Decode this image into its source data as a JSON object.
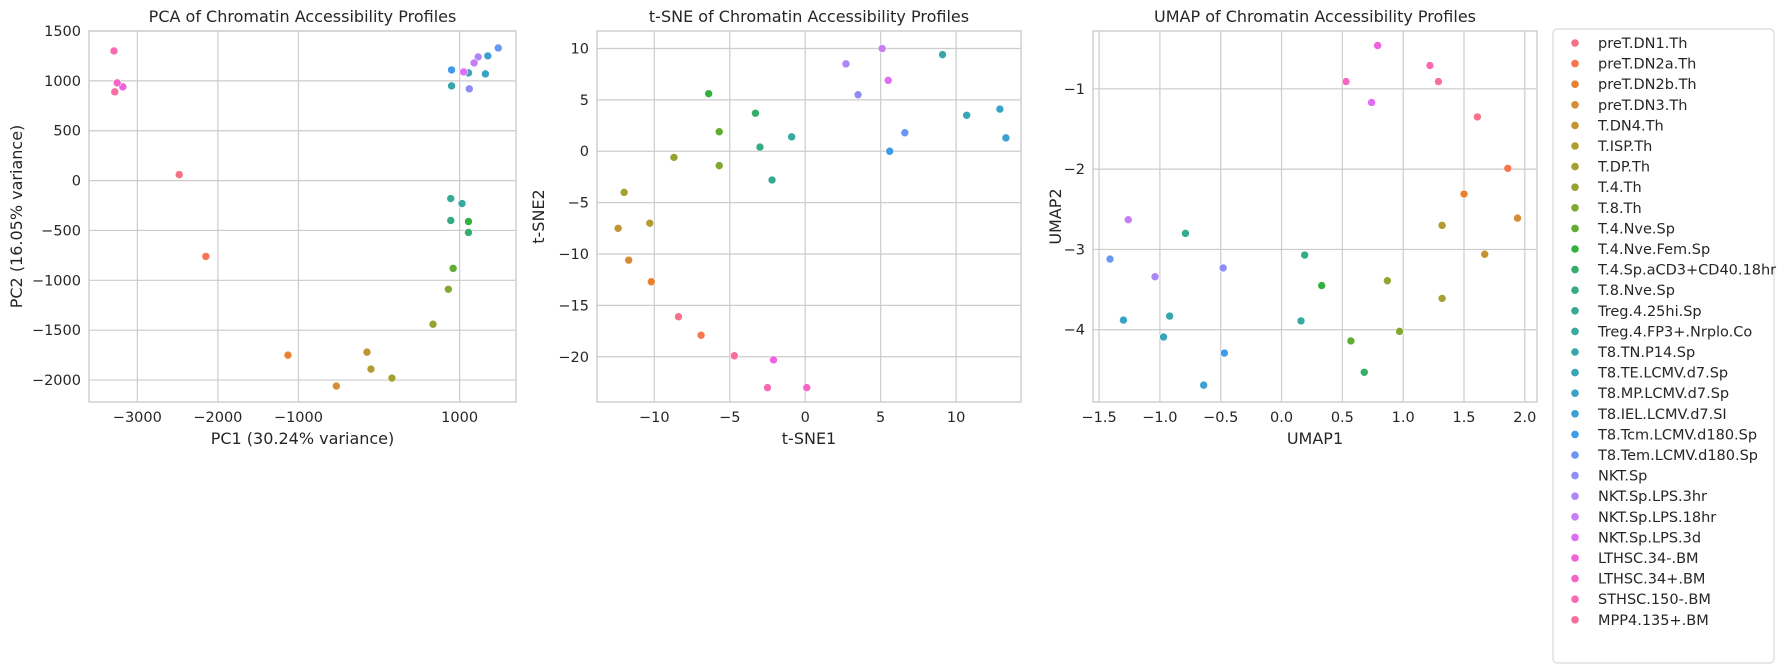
{
  "classes": [
    {
      "name": "preT.DN1.Th",
      "color": "#f77189"
    },
    {
      "name": "preT.DN2a.Th",
      "color": "#f7754f"
    },
    {
      "name": "preT.DN2b.Th",
      "color": "#e98132"
    },
    {
      "name": "preT.DN3.Th",
      "color": "#d58c32"
    },
    {
      "name": "T.DN4.Th",
      "color": "#c39532"
    },
    {
      "name": "T.ISP.Th",
      "color": "#b29b31"
    },
    {
      "name": "T.DP.Th",
      "color": "#a4a031"
    },
    {
      "name": "T.4.Th",
      "color": "#96a331"
    },
    {
      "name": "T.8.Th",
      "color": "#83a831"
    },
    {
      "name": "T.4.Nve.Sp",
      "color": "#5fae31"
    },
    {
      "name": "T.4.Nve.Fem.Sp",
      "color": "#32b13f"
    },
    {
      "name": "T.4.Sp.aCD3+CD40.18hr",
      "color": "#34ae6a"
    },
    {
      "name": "T.8.Nve.Sp",
      "color": "#35ac81"
    },
    {
      "name": "Treg.4.25hi.Sp",
      "color": "#36aa93"
    },
    {
      "name": "Treg.4.FP3+.Nrplo.Co",
      "color": "#36a9a0"
    },
    {
      "name": "T8.TN.P14.Sp",
      "color": "#37a7ac"
    },
    {
      "name": "T8.TE.LCMV.d7.Sp",
      "color": "#38a5b8"
    },
    {
      "name": "T8.MP.LCMV.d7.Sp",
      "color": "#39a3c5"
    },
    {
      "name": "T8.IEL.LCMV.d7.SI",
      "color": "#3ba0d4"
    },
    {
      "name": "T8.Tcm.LCMV.d180.Sp",
      "color": "#3e9bea"
    },
    {
      "name": "T8.Tem.LCMV.d180.Sp",
      "color": "#6a96f4"
    },
    {
      "name": "NKT.Sp",
      "color": "#8e8ef4"
    },
    {
      "name": "NKT.Sp.LPS.3hr",
      "color": "#ab86f4"
    },
    {
      "name": "NKT.Sp.LPS.18hr",
      "color": "#c77ef4"
    },
    {
      "name": "NKT.Sp.LPS.3d",
      "color": "#e06ef4"
    },
    {
      "name": "LTHSC.34-.BM",
      "color": "#f062dc"
    },
    {
      "name": "LTHSC.34+.BM",
      "color": "#f566c6"
    },
    {
      "name": "STHSC.150-.BM",
      "color": "#f66bb2"
    },
    {
      "name": "MPP4.135+.BM",
      "color": "#f76e9f"
    }
  ],
  "chart_data": [
    {
      "type": "scatter",
      "title": "PCA of Chromatin Accessibility Profiles",
      "xlabel": "PC1 (30.24% variance)",
      "ylabel": "PC2 (16.05% variance)",
      "xlim": [
        -3600,
        1700
      ],
      "ylim": [
        -2220,
        1500
      ],
      "xticks": [
        -3000,
        -2000,
        -1000,
        1000
      ],
      "xticklabels": [
        "−3000",
        "−2000",
        "−1000",
        "1000"
      ],
      "yticks": [
        1500,
        1000,
        500,
        0,
        -500,
        -1000,
        -1500,
        -2000
      ],
      "yticklabels": [
        "1500",
        "1000",
        "500",
        "0",
        "−500",
        "−1000",
        "−1500",
        "−2000"
      ],
      "grid": true,
      "points": [
        {
          "x": -2480,
          "y": 60,
          "c": 0
        },
        {
          "x": -2150,
          "y": -760,
          "c": 1
        },
        {
          "x": -1130,
          "y": -1750,
          "c": 2
        },
        {
          "x": -530,
          "y": -2060,
          "c": 3
        },
        {
          "x": -150,
          "y": -1720,
          "c": 4
        },
        {
          "x": -100,
          "y": -1890,
          "c": 5
        },
        {
          "x": 160,
          "y": -1980,
          "c": 6
        },
        {
          "x": 670,
          "y": -1440,
          "c": 7
        },
        {
          "x": 860,
          "y": -1090,
          "c": 8
        },
        {
          "x": 920,
          "y": -880,
          "c": 9
        },
        {
          "x": 1110,
          "y": -410,
          "c": 10
        },
        {
          "x": 1110,
          "y": -520,
          "c": 11
        },
        {
          "x": 890,
          "y": -400,
          "c": 12
        },
        {
          "x": 890,
          "y": -180,
          "c": 13
        },
        {
          "x": 1030,
          "y": -230,
          "c": 14
        },
        {
          "x": 900,
          "y": 950,
          "c": 15
        },
        {
          "x": 1110,
          "y": 1080,
          "c": 16
        },
        {
          "x": 1320,
          "y": 1070,
          "c": 17
        },
        {
          "x": 1350,
          "y": 1250,
          "c": 18
        },
        {
          "x": 900,
          "y": 1110,
          "c": 19
        },
        {
          "x": 1480,
          "y": 1330,
          "c": 20
        },
        {
          "x": 1120,
          "y": 920,
          "c": 21
        },
        {
          "x": 1230,
          "y": 1240,
          "c": 22
        },
        {
          "x": 1180,
          "y": 1180,
          "c": 23
        },
        {
          "x": 1050,
          "y": 1090,
          "c": 24
        },
        {
          "x": -3180,
          "y": 940,
          "c": 25
        },
        {
          "x": -3250,
          "y": 980,
          "c": 26
        },
        {
          "x": -3290,
          "y": 1300,
          "c": 27
        },
        {
          "x": -3280,
          "y": 890,
          "c": 28
        }
      ]
    },
    {
      "type": "scatter",
      "title": "t-SNE of Chromatin Accessibility Profiles",
      "xlabel": "t-SNE1",
      "ylabel": "t-SNE2",
      "xlim": [
        -13.8,
        14.3
      ],
      "ylim": [
        -24.4,
        11.7
      ],
      "xticks": [
        -10,
        -5,
        0,
        5,
        10
      ],
      "xticklabels": [
        "−10",
        "−5",
        "0",
        "5",
        "10"
      ],
      "yticks": [
        10,
        5,
        0,
        -5,
        -10,
        -15,
        -20
      ],
      "yticklabels": [
        "10",
        "5",
        "0",
        "−5",
        "−10",
        "−15",
        "−20"
      ],
      "grid": true,
      "points": [
        {
          "x": -8.4,
          "y": -16.1,
          "c": 0
        },
        {
          "x": -6.9,
          "y": -17.9,
          "c": 1
        },
        {
          "x": -10.2,
          "y": -12.7,
          "c": 2
        },
        {
          "x": -11.7,
          "y": -10.6,
          "c": 3
        },
        {
          "x": -12.4,
          "y": -7.5,
          "c": 4
        },
        {
          "x": -10.3,
          "y": -7.0,
          "c": 5
        },
        {
          "x": -12.0,
          "y": -4.0,
          "c": 6
        },
        {
          "x": -8.7,
          "y": -0.6,
          "c": 7
        },
        {
          "x": -5.7,
          "y": -1.4,
          "c": 8
        },
        {
          "x": -5.7,
          "y": 1.9,
          "c": 9
        },
        {
          "x": -6.4,
          "y": 5.6,
          "c": 10
        },
        {
          "x": -3.3,
          "y": 3.7,
          "c": 11
        },
        {
          "x": -3.0,
          "y": 0.4,
          "c": 12
        },
        {
          "x": -2.2,
          "y": -2.8,
          "c": 13
        },
        {
          "x": -0.9,
          "y": 1.4,
          "c": 14
        },
        {
          "x": 9.1,
          "y": 9.4,
          "c": 15
        },
        {
          "x": 10.7,
          "y": 3.5,
          "c": 16
        },
        {
          "x": 12.9,
          "y": 4.1,
          "c": 17
        },
        {
          "x": 13.3,
          "y": 1.3,
          "c": 18
        },
        {
          "x": 5.6,
          "y": 0.0,
          "c": 19
        },
        {
          "x": 6.6,
          "y": 1.8,
          "c": 20
        },
        {
          "x": 3.5,
          "y": 5.5,
          "c": 21
        },
        {
          "x": 2.7,
          "y": 8.5,
          "c": 22
        },
        {
          "x": 5.1,
          "y": 10.0,
          "c": 23
        },
        {
          "x": 5.5,
          "y": 6.9,
          "c": 24
        },
        {
          "x": -2.1,
          "y": -20.3,
          "c": 25
        },
        {
          "x": 0.1,
          "y": -23.0,
          "c": 26
        },
        {
          "x": -2.5,
          "y": -23.0,
          "c": 27
        },
        {
          "x": -4.7,
          "y": -19.9,
          "c": 28
        }
      ]
    },
    {
      "type": "scatter",
      "title": "UMAP of Chromatin Accessibility Profiles",
      "xlabel": "UMAP1",
      "ylabel": "UMAP2",
      "xlim": [
        -1.55,
        2.1
      ],
      "ylim": [
        -4.9,
        -0.28
      ],
      "xticks": [
        -1.5,
        -1.0,
        -0.5,
        0.0,
        0.5,
        1.0,
        1.5,
        2.0
      ],
      "xticklabels": [
        "−1.5",
        "−1.0",
        "−0.5",
        "0.0",
        "0.5",
        "1.0",
        "1.5",
        "2.0"
      ],
      "yticks": [
        -1,
        -2,
        -3,
        -4
      ],
      "yticklabels": [
        "−1",
        "−2",
        "−3",
        "−4"
      ],
      "grid": true,
      "points": [
        {
          "x": 1.61,
          "y": -1.35,
          "c": 0
        },
        {
          "x": 1.86,
          "y": -1.99,
          "c": 1
        },
        {
          "x": 1.5,
          "y": -2.31,
          "c": 2
        },
        {
          "x": 1.94,
          "y": -2.61,
          "c": 3
        },
        {
          "x": 1.67,
          "y": -3.06,
          "c": 4
        },
        {
          "x": 1.32,
          "y": -2.7,
          "c": 5
        },
        {
          "x": 1.32,
          "y": -3.61,
          "c": 6
        },
        {
          "x": 0.87,
          "y": -3.39,
          "c": 7
        },
        {
          "x": 0.97,
          "y": -4.02,
          "c": 8
        },
        {
          "x": 0.57,
          "y": -4.14,
          "c": 9
        },
        {
          "x": 0.33,
          "y": -3.45,
          "c": 10
        },
        {
          "x": 0.68,
          "y": -4.53,
          "c": 11
        },
        {
          "x": 0.19,
          "y": -3.07,
          "c": 12
        },
        {
          "x": -0.79,
          "y": -2.8,
          "c": 13
        },
        {
          "x": 0.16,
          "y": -3.89,
          "c": 14
        },
        {
          "x": -0.92,
          "y": -3.83,
          "c": 15
        },
        {
          "x": -0.97,
          "y": -4.09,
          "c": 16
        },
        {
          "x": -1.3,
          "y": -3.88,
          "c": 17
        },
        {
          "x": -0.64,
          "y": -4.69,
          "c": 18
        },
        {
          "x": -0.47,
          "y": -4.29,
          "c": 19
        },
        {
          "x": -1.41,
          "y": -3.12,
          "c": 20
        },
        {
          "x": -0.48,
          "y": -3.23,
          "c": 21
        },
        {
          "x": -1.04,
          "y": -3.34,
          "c": 22
        },
        {
          "x": -1.26,
          "y": -2.63,
          "c": 23
        },
        {
          "x": 0.74,
          "y": -1.17,
          "c": 24
        },
        {
          "x": 0.79,
          "y": -0.46,
          "c": 25
        },
        {
          "x": 0.53,
          "y": -0.91,
          "c": 26
        },
        {
          "x": 1.22,
          "y": -0.71,
          "c": 27
        },
        {
          "x": 1.29,
          "y": -0.91,
          "c": 28
        }
      ]
    }
  ]
}
